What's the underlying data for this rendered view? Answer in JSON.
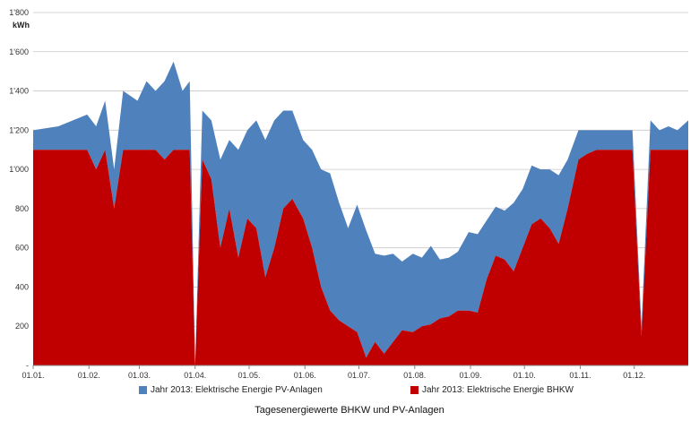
{
  "chart_data": {
    "type": "area",
    "title": "",
    "caption": "Tagesenergiewerte BHKW und PV-Anlagen",
    "ylabel": "kWh",
    "xlabel": "",
    "ylim": [
      0,
      1800
    ],
    "y_ticks": [
      "-",
      "200",
      "400",
      "600",
      "800",
      "1'000",
      "1'200",
      "1'400",
      "1'600",
      "1'800"
    ],
    "y_tick_values": [
      0,
      200,
      400,
      600,
      800,
      1000,
      1200,
      1400,
      1600,
      1800
    ],
    "x_ticks": [
      "01.01.",
      "01.02.",
      "01.03.",
      "01.04.",
      "01.05.",
      "01.06.",
      "01.07.",
      "01.08.",
      "01.09.",
      "01.10.",
      "01.11.",
      "01.12."
    ],
    "stacked": true,
    "grid": "horizontal",
    "legend_position": "bottom",
    "series": [
      {
        "name": "Jahr 2013: Elektrische Energie BHKW",
        "color": "#c00000",
        "x": [
          "01.01.",
          "15.01.",
          "31.01.",
          "05.02.",
          "10.02.",
          "15.02.",
          "20.02.",
          "28.02.",
          "05.03.",
          "10.03.",
          "15.03.",
          "20.03.",
          "25.03.",
          "29.03.",
          "01.04.",
          "05.04.",
          "10.04.",
          "15.04.",
          "20.04.",
          "25.04.",
          "30.04.",
          "05.05.",
          "10.05.",
          "15.05.",
          "20.05.",
          "25.05.",
          "31.05.",
          "05.06.",
          "10.06.",
          "15.06.",
          "20.06.",
          "25.06.",
          "30.06.",
          "05.07.",
          "10.07.",
          "15.07.",
          "20.07.",
          "25.07.",
          "31.07.",
          "05.08.",
          "10.08.",
          "15.08.",
          "20.08.",
          "25.08.",
          "31.08.",
          "05.09.",
          "10.09.",
          "15.09.",
          "20.09.",
          "25.09.",
          "30.09.",
          "05.10.",
          "10.10.",
          "15.10.",
          "20.10.",
          "25.10.",
          "31.10.",
          "05.11.",
          "10.11.",
          "15.11.",
          "20.11.",
          "25.11.",
          "30.11.",
          "05.12.",
          "10.12.",
          "15.12.",
          "20.12.",
          "25.12.",
          "31.12."
        ],
        "values": [
          1100,
          1100,
          1100,
          1000,
          1100,
          800,
          1100,
          1100,
          1100,
          1100,
          1050,
          1100,
          1100,
          1100,
          0,
          1050,
          950,
          600,
          800,
          550,
          750,
          700,
          450,
          600,
          800,
          850,
          750,
          600,
          400,
          280,
          230,
          200,
          170,
          40,
          120,
          60,
          120,
          180,
          170,
          200,
          210,
          240,
          250,
          280,
          280,
          270,
          440,
          560,
          540,
          480,
          600,
          720,
          750,
          700,
          620,
          800,
          1050,
          1080,
          1100,
          1100,
          1100,
          1100,
          1100,
          150,
          1100,
          1100,
          1100,
          1100,
          1100
        ]
      },
      {
        "name": "Jahr 2013: Elektrische Energie PV-Anlagen",
        "color": "#4f81bd",
        "x": [
          "01.01.",
          "15.01.",
          "31.01.",
          "05.02.",
          "10.02.",
          "15.02.",
          "20.02.",
          "28.02.",
          "05.03.",
          "10.03.",
          "15.03.",
          "20.03.",
          "25.03.",
          "29.03.",
          "01.04.",
          "05.04.",
          "10.04.",
          "15.04.",
          "20.04.",
          "25.04.",
          "30.04.",
          "05.05.",
          "10.05.",
          "15.05.",
          "20.05.",
          "25.05.",
          "31.05.",
          "05.06.",
          "10.06.",
          "15.06.",
          "20.06.",
          "25.06.",
          "30.06.",
          "05.07.",
          "10.07.",
          "15.07.",
          "20.07.",
          "25.07.",
          "31.07.",
          "05.08.",
          "10.08.",
          "15.08.",
          "20.08.",
          "25.08.",
          "31.08.",
          "05.09.",
          "10.09.",
          "15.09.",
          "20.09.",
          "25.09.",
          "30.09.",
          "05.10.",
          "10.10.",
          "15.10.",
          "20.10.",
          "25.10.",
          "31.10.",
          "05.11.",
          "10.11.",
          "15.11.",
          "20.11.",
          "25.11.",
          "30.11.",
          "05.12.",
          "10.12.",
          "15.12.",
          "20.12.",
          "25.12.",
          "31.12."
        ],
        "values": [
          100,
          120,
          180,
          220,
          250,
          200,
          300,
          250,
          350,
          300,
          400,
          450,
          300,
          350,
          0,
          250,
          300,
          450,
          350,
          550,
          450,
          550,
          700,
          650,
          500,
          450,
          400,
          500,
          600,
          700,
          600,
          500,
          650,
          650,
          450,
          500,
          450,
          350,
          400,
          350,
          400,
          300,
          300,
          300,
          400,
          400,
          300,
          250,
          250,
          350,
          300,
          300,
          250,
          300,
          350,
          250,
          150,
          120,
          100,
          100,
          100,
          100,
          100,
          50,
          150,
          100,
          120,
          100,
          150
        ]
      }
    ]
  }
}
